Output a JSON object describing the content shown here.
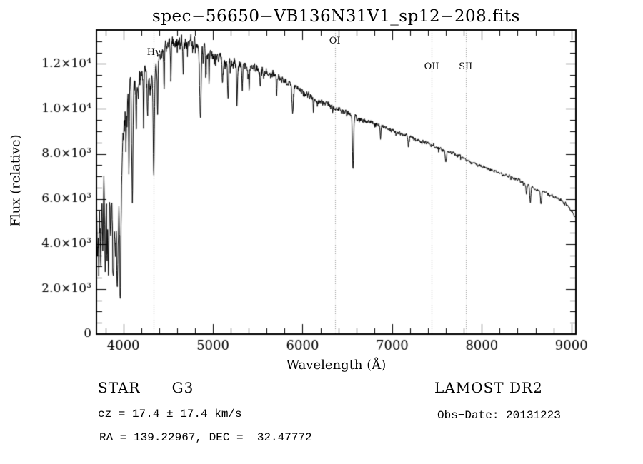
{
  "chart_data": {
    "type": "line",
    "title": "spec−56650−VB136N31V1_sp12−208.fits",
    "xlabel": "Wavelength (Å)",
    "ylabel": "Flux (relative)",
    "xlim": [
      3700,
      9050
    ],
    "ylim": [
      0,
      13500
    ],
    "grid": false,
    "x_ticks": {
      "major": [
        4000,
        5000,
        6000,
        7000,
        8000,
        9000
      ],
      "labels": [
        "4000",
        "5000",
        "6000",
        "7000",
        "8000",
        "9000"
      ],
      "minor_step": 200
    },
    "y_ticks": {
      "major": [
        0,
        2000,
        4000,
        6000,
        8000,
        10000,
        12000
      ],
      "labels": [
        "0",
        "2.0×10³",
        "4.0×10³",
        "6.0×10³",
        "8.0×10³",
        "1.0×10⁴",
        "1.2×10⁴"
      ],
      "minor_step": 500
    },
    "reference_lines": [
      {
        "label": "Hγ",
        "wavelength": 4340,
        "label_top": 66
      },
      {
        "label": "OI",
        "wavelength": 6360,
        "label_top": 50
      },
      {
        "label": "OII",
        "wavelength": 7440,
        "label_top": 86
      },
      {
        "label": "SII",
        "wavelength": 7820,
        "label_top": 86
      }
    ],
    "reference_line_color": "#999999",
    "line_color": "#000000",
    "continuum_points": [
      [
        3700,
        5600
      ],
      [
        3730,
        6400
      ],
      [
        3760,
        6800
      ],
      [
        3800,
        6900
      ],
      [
        3840,
        6400
      ],
      [
        3880,
        5800
      ],
      [
        3920,
        5300
      ],
      [
        3960,
        6000
      ],
      [
        4000,
        9200
      ],
      [
        4040,
        10600
      ],
      [
        4080,
        11300
      ],
      [
        4120,
        11200
      ],
      [
        4160,
        11000
      ],
      [
        4200,
        11600
      ],
      [
        4240,
        11800
      ],
      [
        4280,
        11300
      ],
      [
        4320,
        11400
      ],
      [
        4360,
        11900
      ],
      [
        4400,
        12300
      ],
      [
        4450,
        12700
      ],
      [
        4500,
        12900
      ],
      [
        4550,
        13000
      ],
      [
        4600,
        12800
      ],
      [
        4650,
        13050
      ],
      [
        4700,
        12900
      ],
      [
        4750,
        13000
      ],
      [
        4800,
        13050
      ],
      [
        4850,
        12500
      ],
      [
        4900,
        12650
      ],
      [
        4950,
        12550
      ],
      [
        5000,
        12450
      ],
      [
        5100,
        12250
      ],
      [
        5200,
        12050
      ],
      [
        5300,
        11950
      ],
      [
        5400,
        11850
      ],
      [
        5500,
        11750
      ],
      [
        5600,
        11550
      ],
      [
        5700,
        11450
      ],
      [
        5800,
        11250
      ],
      [
        5900,
        11000
      ],
      [
        6000,
        10750
      ],
      [
        6100,
        10550
      ],
      [
        6200,
        10350
      ],
      [
        6300,
        10150
      ],
      [
        6400,
        9950
      ],
      [
        6500,
        9800
      ],
      [
        6600,
        9600
      ],
      [
        6700,
        9450
      ],
      [
        6800,
        9350
      ],
      [
        6900,
        9200
      ],
      [
        7000,
        9050
      ],
      [
        7100,
        8900
      ],
      [
        7200,
        8750
      ],
      [
        7300,
        8600
      ],
      [
        7400,
        8450
      ],
      [
        7500,
        8300
      ],
      [
        7600,
        8150
      ],
      [
        7700,
        8000
      ],
      [
        7800,
        7800
      ],
      [
        7900,
        7600
      ],
      [
        8000,
        7450
      ],
      [
        8100,
        7300
      ],
      [
        8200,
        7150
      ],
      [
        8300,
        7000
      ],
      [
        8400,
        6850
      ],
      [
        8500,
        6650
      ],
      [
        8600,
        6450
      ],
      [
        8700,
        6300
      ],
      [
        8800,
        6100
      ],
      [
        8900,
        5900
      ],
      [
        8960,
        5700
      ],
      [
        9020,
        5350
      ],
      [
        9050,
        5100
      ]
    ],
    "absorption_lines": [
      {
        "center": 3712,
        "depth": 0.4,
        "width": 5
      },
      {
        "center": 3727,
        "depth": 0.45,
        "width": 5
      },
      {
        "center": 3750,
        "depth": 0.5,
        "width": 6
      },
      {
        "center": 3771,
        "depth": 0.45,
        "width": 5
      },
      {
        "center": 3798,
        "depth": 0.5,
        "width": 6
      },
      {
        "center": 3820,
        "depth": 0.35,
        "width": 5
      },
      {
        "center": 3835,
        "depth": 0.55,
        "width": 6
      },
      {
        "center": 3860,
        "depth": 0.3,
        "width": 5
      },
      {
        "center": 3889,
        "depth": 0.55,
        "width": 7
      },
      {
        "center": 3910,
        "depth": 0.3,
        "width": 5
      },
      {
        "center": 3933,
        "depth": 0.6,
        "width": 7
      },
      {
        "center": 3968,
        "depth": 0.55,
        "width": 7
      },
      {
        "center": 4030,
        "depth": 0.2,
        "width": 4
      },
      {
        "center": 4063,
        "depth": 0.35,
        "width": 4
      },
      {
        "center": 4101,
        "depth": 0.42,
        "width": 7
      },
      {
        "center": 4144,
        "depth": 0.18,
        "width": 4
      },
      {
        "center": 4227,
        "depth": 0.22,
        "width": 4
      },
      {
        "center": 4271,
        "depth": 0.15,
        "width": 4
      },
      {
        "center": 4340,
        "depth": 0.38,
        "width": 7
      },
      {
        "center": 4383,
        "depth": 0.2,
        "width": 4
      },
      {
        "center": 4455,
        "depth": 0.12,
        "width": 4
      },
      {
        "center": 4531,
        "depth": 0.12,
        "width": 4
      },
      {
        "center": 4668,
        "depth": 0.12,
        "width": 4
      },
      {
        "center": 4861,
        "depth": 0.26,
        "width": 7
      },
      {
        "center": 4920,
        "depth": 0.1,
        "width": 4
      },
      {
        "center": 4957,
        "depth": 0.1,
        "width": 4
      },
      {
        "center": 5107,
        "depth": 0.1,
        "width": 4
      },
      {
        "center": 5169,
        "depth": 0.14,
        "width": 6
      },
      {
        "center": 5270,
        "depth": 0.12,
        "width": 5
      },
      {
        "center": 5328,
        "depth": 0.08,
        "width": 4
      },
      {
        "center": 5404,
        "depth": 0.08,
        "width": 4
      },
      {
        "center": 5528,
        "depth": 0.08,
        "width": 4
      },
      {
        "center": 5711,
        "depth": 0.07,
        "width": 4
      },
      {
        "center": 5890,
        "depth": 0.12,
        "width": 6
      },
      {
        "center": 6122,
        "depth": 0.06,
        "width": 4
      },
      {
        "center": 6563,
        "depth": 0.25,
        "width": 6
      },
      {
        "center": 6870,
        "depth": 0.06,
        "width": 5
      },
      {
        "center": 7180,
        "depth": 0.04,
        "width": 5
      },
      {
        "center": 7600,
        "depth": 0.06,
        "width": 8
      },
      {
        "center": 8498,
        "depth": 0.07,
        "width": 5
      },
      {
        "center": 8542,
        "depth": 0.11,
        "width": 6
      },
      {
        "center": 8662,
        "depth": 0.1,
        "width": 6
      }
    ],
    "noise": {
      "seed": 20131223,
      "segments": [
        {
          "from": 3700,
          "to": 3980,
          "amp": 1150
        },
        {
          "from": 3980,
          "to": 4200,
          "amp": 700
        },
        {
          "from": 4200,
          "to": 4500,
          "amp": 480
        },
        {
          "from": 4500,
          "to": 5000,
          "amp": 380
        },
        {
          "from": 5000,
          "to": 5600,
          "amp": 300
        },
        {
          "from": 5600,
          "to": 6200,
          "amp": 210
        },
        {
          "from": 6200,
          "to": 6800,
          "amp": 150
        },
        {
          "from": 6800,
          "to": 7600,
          "amp": 110
        },
        {
          "from": 7600,
          "to": 9050,
          "amp": 90
        }
      ]
    },
    "sample_step": 3
  },
  "annotations": {
    "class_line": "STAR      G3",
    "survey": "LAMOST DR2",
    "cz_line": "cz = 17.4 ± 17.4 km/s",
    "obs_date": "Obs−Date: 20131223",
    "coords_line": "RA = 139.22967, DEC =  32.47772"
  }
}
